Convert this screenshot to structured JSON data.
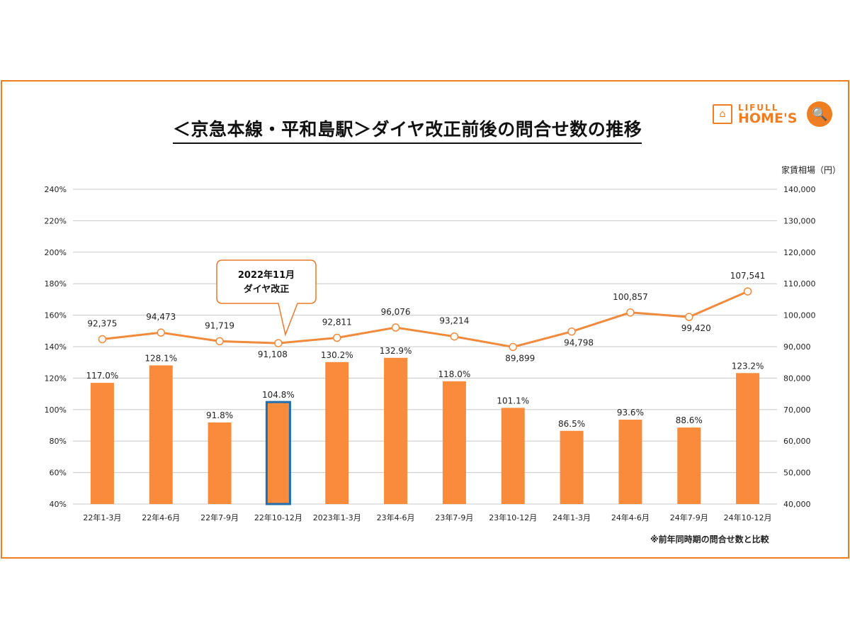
{
  "title": "＜京急本線・平和島駅＞ダイヤ改正前後の問合せ数の推移",
  "logo": {
    "line1": "LIFULL",
    "line2": "HOME'S"
  },
  "note": "※前年同時期の問合せ数と比較",
  "chart_data": {
    "type": "bar+line",
    "title": "＜京急本線・平和島駅＞ダイヤ改正前後の問合せ数の推移",
    "categories": [
      "22年1-3月",
      "22年4-6月",
      "22年7-9月",
      "22年10-12月",
      "2023年1-3月",
      "23年4-6月",
      "23年7-9月",
      "23年10-12月",
      "24年1-3月",
      "24年4-6月",
      "24年7-9月",
      "24年10-12月"
    ],
    "series": [
      {
        "name": "問合せ数（前年同期比）",
        "type": "bar",
        "axis": "left",
        "values": [
          117.0,
          128.1,
          91.8,
          104.8,
          130.2,
          132.9,
          118.0,
          101.1,
          86.5,
          93.6,
          88.6,
          123.2
        ],
        "labels": [
          "117.0%",
          "128.1%",
          "91.8%",
          "104.8%",
          "130.2%",
          "132.9%",
          "118.0%",
          "101.1%",
          "86.5%",
          "93.6%",
          "88.6%",
          "123.2%"
        ],
        "highlight_index": 3
      },
      {
        "name": "家賃相場",
        "type": "line",
        "axis": "right",
        "values": [
          92375,
          94473,
          91719,
          91108,
          92811,
          96076,
          93214,
          89899,
          94798,
          100857,
          99420,
          107541
        ],
        "labels": [
          "92,375",
          "94,473",
          "91,719",
          "91,108",
          "92,811",
          "96,076",
          "93,214",
          "89,899",
          "94,798",
          "100,857",
          "99,420",
          "107,541"
        ]
      }
    ],
    "ylabel_right": "家賃相場（円）",
    "ylim_left": [
      40,
      240
    ],
    "yticks_left": [
      "40%",
      "60%",
      "80%",
      "100%",
      "120%",
      "140%",
      "160%",
      "180%",
      "200%",
      "220%",
      "240%"
    ],
    "ylim_right": [
      40000,
      140000
    ],
    "yticks_right": [
      "40,000",
      "50,000",
      "60,000",
      "70,000",
      "80,000",
      "90,000",
      "100,000",
      "110,000",
      "120,000",
      "130,000",
      "140,000"
    ],
    "annotation": {
      "line1": "2022年11月",
      "line2": "ダイヤ改正",
      "category_index": 3
    },
    "colors": {
      "bar": "#f98b3a",
      "highlight": "#1f6fb0",
      "line": "#f08a3c",
      "grid": "#c8c8c8"
    },
    "grid": true
  }
}
